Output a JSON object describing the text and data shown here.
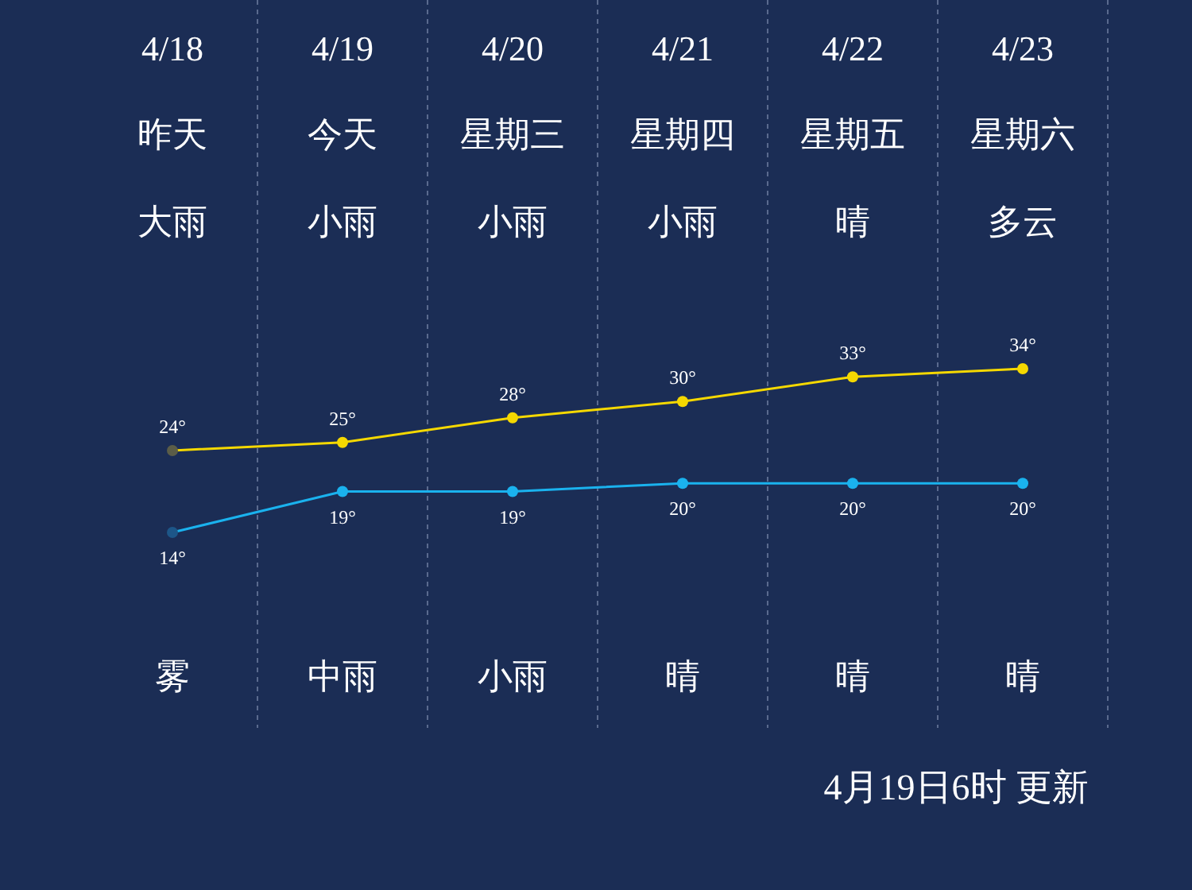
{
  "chart_data": {
    "type": "line",
    "categories": [
      "4/18",
      "4/19",
      "4/20",
      "4/21",
      "4/22",
      "4/23"
    ],
    "series": [
      {
        "color": "#f5d800",
        "colors": [
          "#5b5d48",
          "#f5d800",
          "#f5d800",
          "#f5d800",
          "#f5d800",
          "#f5d800"
        ],
        "values": [
          24,
          25,
          28,
          30,
          33,
          34
        ],
        "value_labels": [
          "24°",
          "25°",
          "28°",
          "30°",
          "33°",
          "34°"
        ],
        "axis": "y"
      },
      {
        "color": "#1ab2ee",
        "colors": [
          "#1d5688",
          "#1ab2ee",
          "#1ab2ee",
          "#1ab2ee",
          "#1ab2ee",
          "#1ab2ee"
        ],
        "values": [
          14,
          19,
          19,
          20,
          20,
          20
        ],
        "value_labels": [
          "14°",
          "19°",
          "19°",
          "20°",
          "20°",
          "20°"
        ]
      }
    ],
    "marker": "circle",
    "grid": "x",
    "tick_labels": "x",
    "annotations": [
      "昨天",
      "今天",
      "星期三",
      "星期四",
      "星期五",
      "星期六",
      "大雨",
      "小雨",
      "小雨",
      "小雨",
      "晴",
      "多云",
      "雾",
      "中雨",
      "小雨",
      "晴",
      "晴",
      "晴",
      "4月19日6时 更新"
    ]
  }
}
